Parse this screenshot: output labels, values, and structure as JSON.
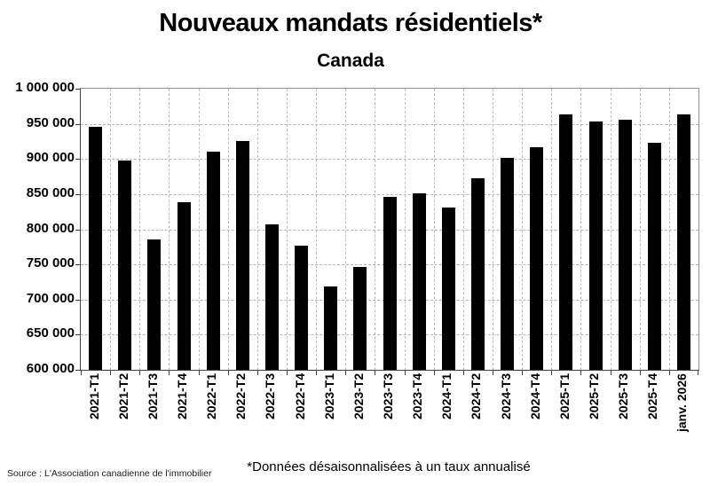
{
  "chart_data": {
    "type": "bar",
    "title": "Nouveaux mandats résidentiels*",
    "subtitle": "Canada",
    "categories": [
      "2021-T1",
      "2021-T2",
      "2021-T3",
      "2021-T4",
      "2022-T1",
      "2022-T2",
      "2022-T3",
      "2022-T4",
      "2023-T1",
      "2023-T2",
      "2023-T3",
      "2023-T4",
      "2024-T1",
      "2024-T2",
      "2024-T3",
      "2024-T4",
      "2025-T1",
      "2025-T2",
      "2025-T3",
      "2025-T4",
      "janv. 2026"
    ],
    "values": [
      946000,
      898000,
      786000,
      838000,
      911000,
      925000,
      807000,
      777000,
      718000,
      746000,
      846000,
      851000,
      831000,
      872000,
      902000,
      917000,
      963000,
      953000,
      956000,
      923000,
      964000
    ],
    "xlabel": "",
    "ylabel": "",
    "ylim": [
      600000,
      1000000
    ],
    "y_tick_step": 50000,
    "y_tick_values": [
      1000000,
      950000,
      900000,
      850000,
      800000,
      750000,
      700000,
      650000,
      600000
    ],
    "y_tick_labels": [
      "1 000 000",
      "950 000",
      "900 000",
      "850 000",
      "800 000",
      "750 000",
      "700 000",
      "650 000",
      "600 000"
    ],
    "grid": "dashed horizontal and vertical",
    "legend": "none",
    "bar_color": "#000000",
    "footnote": "*Données  désaisonnalisées  à  un  taux  annualisé",
    "source": "Source : L'Association canadienne de l'immobilier"
  }
}
